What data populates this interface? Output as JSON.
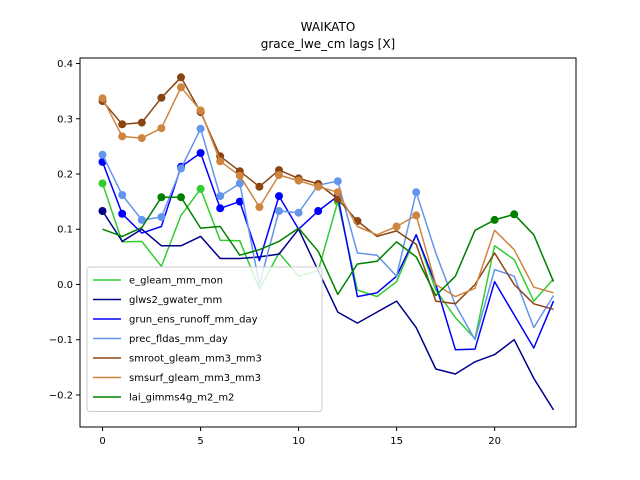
{
  "chart_data": {
    "type": "line",
    "title": "WAIKATO",
    "subtitle": "grace_lwe_cm lags [X]",
    "xlabel": "",
    "ylabel": "",
    "xlim": [
      -1.15,
      24.15
    ],
    "ylim": [
      -0.258,
      0.41
    ],
    "xticks": [
      0,
      5,
      10,
      15,
      20
    ],
    "yticks": [
      -0.2,
      -0.1,
      0.0,
      0.1,
      0.2,
      0.3,
      0.4
    ],
    "ytick_labels": [
      "−0.2",
      "−0.1",
      "0.0",
      "0.1",
      "0.2",
      "0.3",
      "0.4"
    ],
    "legend_position": "lower-left",
    "x": [
      0,
      1,
      2,
      3,
      4,
      5,
      6,
      7,
      8,
      9,
      10,
      11,
      12,
      13,
      14,
      15,
      16,
      17,
      18,
      19,
      20,
      21,
      22,
      23
    ],
    "series": [
      {
        "name": "e_gleam_mm_mon",
        "color": "#32cd32",
        "values": [
          0.183,
          0.077,
          0.078,
          0.033,
          0.125,
          0.173,
          0.08,
          0.079,
          -0.008,
          0.057,
          0.015,
          0.025,
          0.15,
          -0.01,
          -0.022,
          0.005,
          0.09,
          -0.01,
          -0.06,
          -0.098,
          0.07,
          0.045,
          -0.03,
          0.01
        ],
        "markers": [
          0,
          5,
          12
        ]
      },
      {
        "name": "glws2_gwater_mm",
        "color": "#00008b",
        "values": [
          0.133,
          0.078,
          0.1,
          0.07,
          0.07,
          0.087,
          0.047,
          0.047,
          0.05,
          0.055,
          0.1,
          0.025,
          -0.05,
          -0.07,
          -0.05,
          -0.03,
          -0.078,
          -0.153,
          -0.162,
          -0.14,
          -0.127,
          -0.1,
          -0.17,
          -0.227
        ],
        "markers": [
          0
        ]
      },
      {
        "name": "grun_ens_runoff_mm_day",
        "color": "#0000ff",
        "values": [
          0.222,
          0.128,
          0.093,
          0.105,
          0.213,
          0.238,
          0.138,
          0.15,
          0.043,
          0.16,
          0.1,
          0.133,
          0.16,
          -0.022,
          -0.015,
          0.015,
          0.09,
          0.0,
          -0.118,
          -0.117,
          0.005,
          -0.055,
          -0.115,
          -0.03
        ],
        "markers": [
          0,
          1,
          4,
          5,
          6,
          7,
          9,
          11,
          12
        ]
      },
      {
        "name": "prec_fldas_mm_day",
        "color": "#6495ed",
        "values": [
          0.235,
          0.162,
          0.117,
          0.122,
          0.21,
          0.282,
          0.16,
          0.183,
          0.0,
          0.133,
          0.13,
          0.18,
          0.187,
          0.057,
          0.053,
          0.015,
          0.167,
          0.057,
          -0.037,
          -0.1,
          0.027,
          0.015,
          -0.078,
          -0.02
        ],
        "markers": [
          0,
          1,
          2,
          3,
          4,
          5,
          6,
          7,
          9,
          10,
          11,
          12,
          16
        ]
      },
      {
        "name": "smroot_gleam_mm3_mm3",
        "color": "#8b4513",
        "values": [
          0.332,
          0.29,
          0.293,
          0.338,
          0.375,
          0.312,
          0.232,
          0.205,
          0.177,
          0.207,
          0.192,
          0.182,
          0.155,
          0.115,
          0.087,
          0.097,
          0.073,
          -0.03,
          -0.035,
          0.0,
          0.057,
          0.0,
          -0.035,
          -0.045
        ],
        "markers": [
          0,
          1,
          2,
          3,
          4,
          5,
          6,
          7,
          8,
          9,
          10,
          11,
          12,
          13
        ]
      },
      {
        "name": "smsurf_gleam_mm3_mm3",
        "color": "#cd853f",
        "values": [
          0.337,
          0.268,
          0.265,
          0.283,
          0.357,
          0.315,
          0.223,
          0.197,
          0.14,
          0.198,
          0.188,
          0.177,
          0.167,
          0.105,
          0.09,
          0.105,
          0.125,
          0.0,
          -0.022,
          -0.007,
          0.098,
          0.063,
          -0.005,
          -0.015
        ],
        "markers": [
          0,
          1,
          2,
          3,
          4,
          5,
          6,
          7,
          8,
          9,
          10,
          11,
          12,
          15,
          16
        ]
      },
      {
        "name": "lai_gimms4g_m2_m2",
        "color": "#008000",
        "values": [
          0.1,
          0.087,
          0.103,
          0.158,
          0.158,
          0.102,
          0.105,
          0.053,
          0.063,
          0.078,
          0.102,
          0.06,
          -0.018,
          0.037,
          0.042,
          0.077,
          0.05,
          -0.02,
          0.015,
          0.098,
          0.117,
          0.127,
          0.09,
          0.005
        ],
        "markers": [
          3,
          4,
          20,
          21
        ]
      }
    ]
  }
}
